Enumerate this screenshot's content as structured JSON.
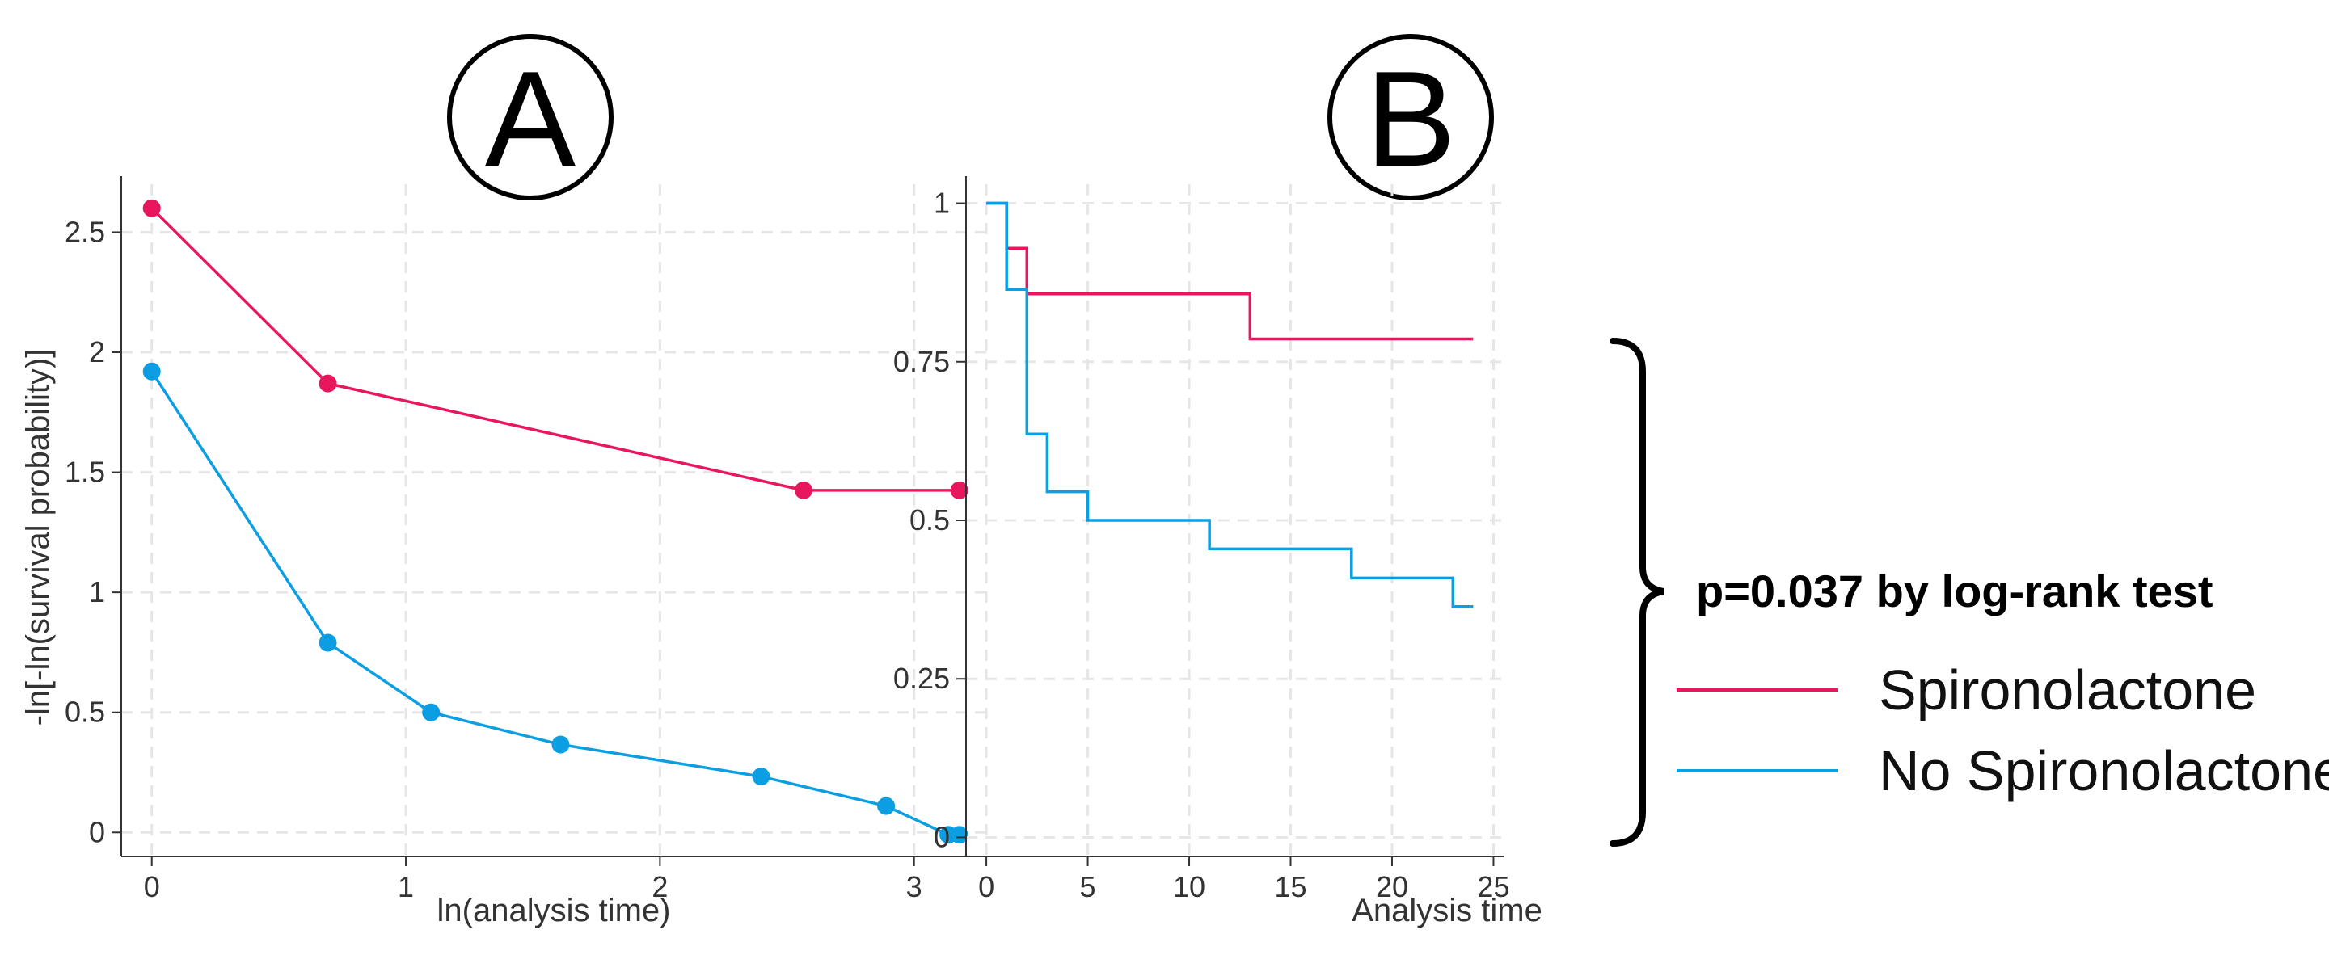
{
  "colors": {
    "spironolactone": "#e8175d",
    "no_spironolactone": "#0b9ee3",
    "grid": "#e6e6e6",
    "axis": "#333333"
  },
  "panels": {
    "a": {
      "letter": "A"
    },
    "b": {
      "letter": "B"
    }
  },
  "annotation": {
    "text": "p=0.037 by log-rank test"
  },
  "legend": [
    {
      "label": "Spironolactone",
      "series": "spironolactone"
    },
    {
      "label": "No Spironolactone",
      "series": "no_spironolactone"
    }
  ],
  "chart_data": [
    {
      "id": "A",
      "type": "line",
      "title": "",
      "xlabel": "ln(analysis time)",
      "ylabel": "-ln[-ln(survival probability)]",
      "xlim": [
        -0.12,
        3.3
      ],
      "ylim": [
        -0.1,
        2.7
      ],
      "xticks": [
        {
          "v": 0,
          "label": "0"
        },
        {
          "v": 1,
          "label": "1"
        },
        {
          "v": 2,
          "label": "2"
        },
        {
          "v": 3,
          "label": "3"
        }
      ],
      "yticks": [
        {
          "v": 0,
          "label": "0"
        },
        {
          "v": 0.5,
          "label": "0.5"
        },
        {
          "v": 1,
          "label": "1"
        },
        {
          "v": 1.5,
          "label": "1.5"
        },
        {
          "v": 2,
          "label": "2"
        },
        {
          "v": 2.5,
          "label": "2.5"
        }
      ],
      "grid": true,
      "series": [
        {
          "key": "spironolactone",
          "name": "Spironolactone",
          "x": [
            0,
            0.693,
            2.565,
            3.178
          ],
          "y": [
            2.6,
            1.87,
            1.425,
            1.425
          ]
        },
        {
          "key": "no_spironolactone",
          "name": "No Spironolactone",
          "x": [
            0,
            0.693,
            1.099,
            1.609,
            2.398,
            2.89,
            3.135,
            3.178
          ],
          "y": [
            1.92,
            0.79,
            0.5,
            0.366,
            0.233,
            0.11,
            -0.01,
            -0.01
          ]
        }
      ]
    },
    {
      "id": "B",
      "type": "line",
      "title": "",
      "xlabel": "Analysis time",
      "ylabel": "",
      "xlim": [
        -1,
        25.5
      ],
      "ylim": [
        -0.03,
        1.03
      ],
      "xticks": [
        {
          "v": 0,
          "label": "0"
        },
        {
          "v": 5,
          "label": "5"
        },
        {
          "v": 10,
          "label": "10"
        },
        {
          "v": 15,
          "label": "15"
        },
        {
          "v": 20,
          "label": "20"
        },
        {
          "v": 25,
          "label": "25"
        }
      ],
      "yticks": [
        {
          "v": 0,
          "label": "0"
        },
        {
          "v": 0.25,
          "label": "0.25"
        },
        {
          "v": 0.5,
          "label": "0.5"
        },
        {
          "v": 0.75,
          "label": "0.75"
        },
        {
          "v": 1,
          "label": "1"
        }
      ],
      "grid": true,
      "step": true,
      "series": [
        {
          "key": "spironolactone",
          "name": "Spironolactone",
          "x": [
            0,
            1,
            2,
            13,
            24
          ],
          "y": [
            1,
            0.929,
            0.857,
            0.786,
            0.786
          ]
        },
        {
          "key": "no_spironolactone",
          "name": "No Spironolactone",
          "x": [
            0,
            1,
            2,
            3,
            5,
            11,
            18,
            23,
            24
          ],
          "y": [
            1,
            0.864,
            0.636,
            0.545,
            0.5,
            0.455,
            0.409,
            0.364,
            0.364
          ]
        }
      ]
    }
  ]
}
